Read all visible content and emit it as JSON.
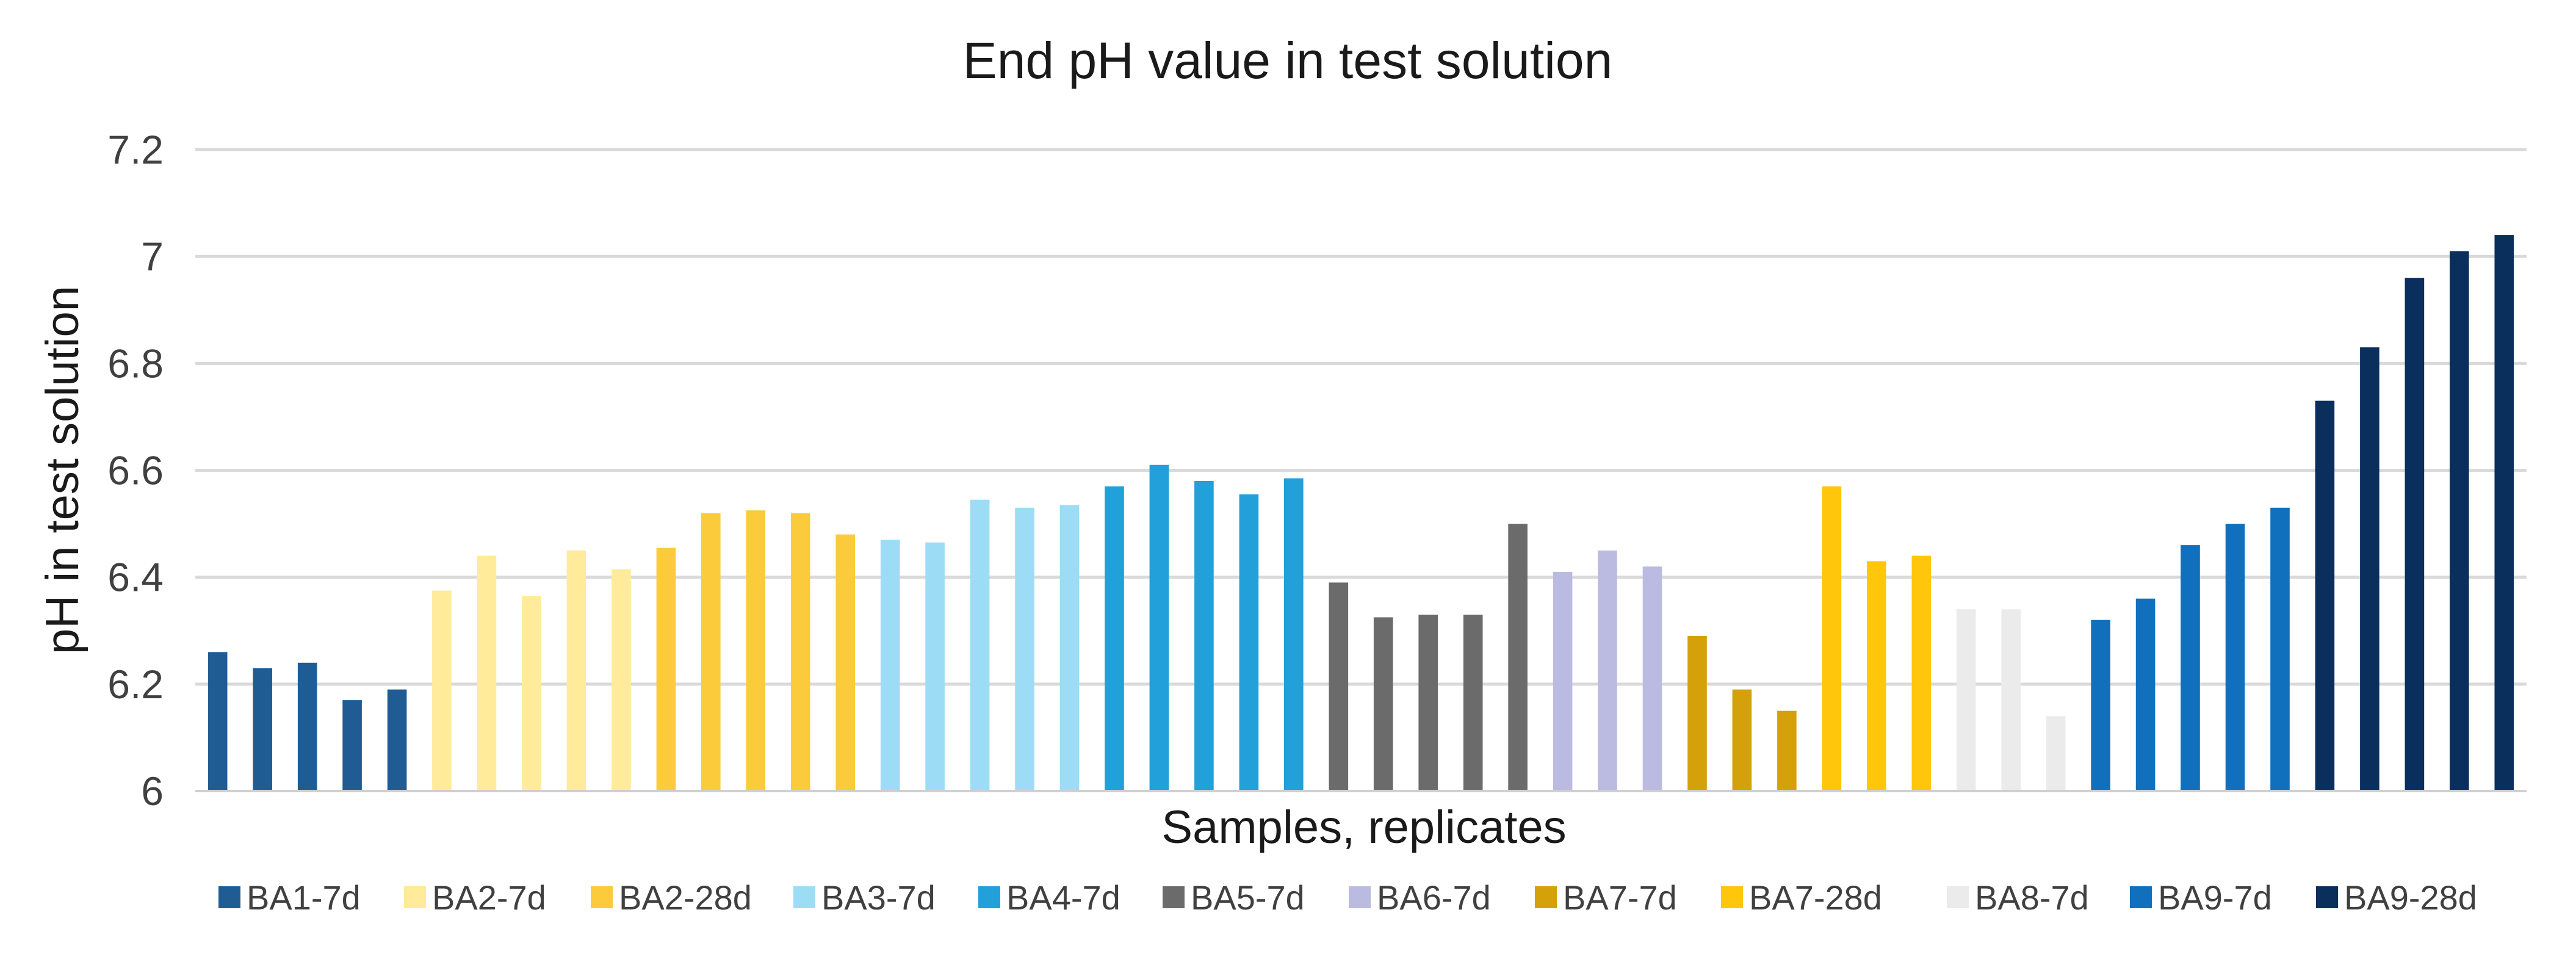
{
  "chart_data": {
    "type": "bar",
    "title": "End pH value in test solution",
    "xlabel": "Samples, replicates",
    "ylabel": "pH in test solution",
    "ylim": [
      6,
      7.2
    ],
    "yticks": [
      6,
      6.2,
      6.4,
      6.6,
      6.8,
      7,
      7.2
    ],
    "ytick_labels": [
      "6",
      "6.2",
      "6.4",
      "6.6",
      "6.8",
      "7",
      "7.2"
    ],
    "grid": true,
    "legend_position": "bottom",
    "series": [
      {
        "name": "BA1-7d",
        "color": "#1F5C94",
        "values": [
          6.26,
          6.23,
          6.24,
          6.17,
          6.19
        ]
      },
      {
        "name": "BA2-7d",
        "color": "#FFEB99",
        "values": [
          6.375,
          6.44,
          6.365,
          6.45,
          6.415
        ]
      },
      {
        "name": "BA2-28d",
        "color": "#FBCB3C",
        "values": [
          6.455,
          6.52,
          6.525,
          6.52,
          6.48
        ]
      },
      {
        "name": "BA3-7d",
        "color": "#9DDCF5",
        "values": [
          6.47,
          6.465,
          6.545,
          6.53,
          6.535
        ]
      },
      {
        "name": "BA4-7d",
        "color": "#21A0DA",
        "values": [
          6.57,
          6.61,
          6.58,
          6.555,
          6.585
        ]
      },
      {
        "name": "BA5-7d",
        "color": "#6B6B6B",
        "values": [
          6.39,
          6.325,
          6.33,
          6.33,
          6.5
        ]
      },
      {
        "name": "BA6-7d",
        "color": "#BBBBE1",
        "values": [
          6.41,
          6.45,
          6.42
        ]
      },
      {
        "name": "BA7-7d",
        "color": "#D4A10A",
        "values": [
          6.29,
          6.19,
          6.15
        ]
      },
      {
        "name": "BA7-28d",
        "color": "#FFC60B",
        "values": [
          6.57,
          6.43,
          6.44
        ]
      },
      {
        "name": "BA8-7d",
        "color": "#EBEBEB",
        "values": [
          6.34,
          6.34,
          6.14
        ]
      },
      {
        "name": "BA9-7d",
        "color": "#1170BE",
        "values": [
          6.32,
          6.36,
          6.46,
          6.5,
          6.53
        ]
      },
      {
        "name": "BA9-28d",
        "color": "#0B2F5C",
        "values": [
          6.73,
          6.83,
          6.96,
          7.01,
          7.04
        ]
      }
    ]
  }
}
